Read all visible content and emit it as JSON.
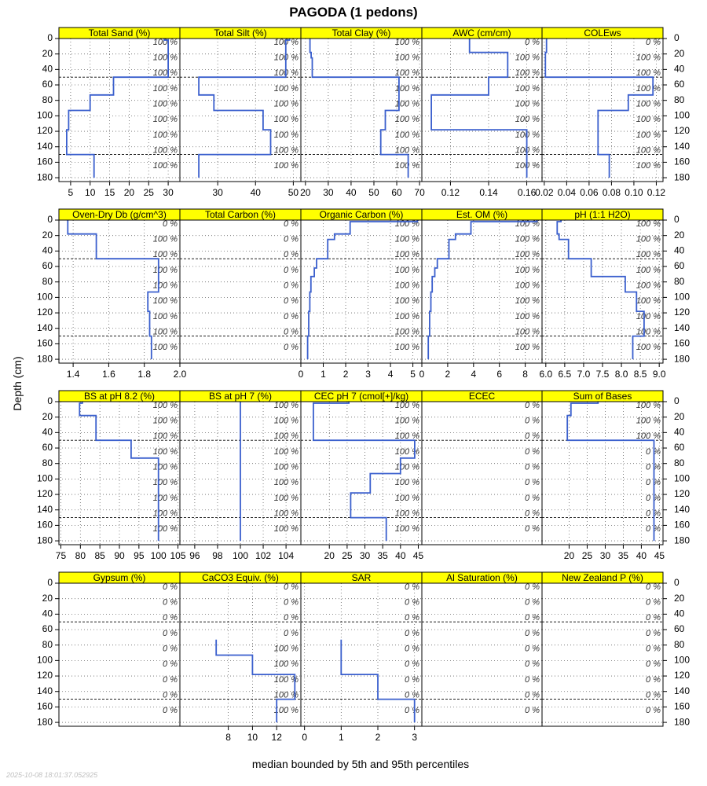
{
  "figure": {
    "title": "PAGODA (1 pedons)",
    "ylabel": "Depth (cm)",
    "xlabel": "median bounded by 5th and 95th percentiles",
    "timestamp": "2025-10-08 18:01:37.052925"
  },
  "colors": {
    "strip": "#ffff00",
    "line": "#3a5fcd",
    "text": "#000000",
    "grid": "#666666",
    "boundary": "#000000",
    "stamp": "#c0c0c0"
  },
  "chart_data": {
    "type": "line",
    "ylim": [
      0,
      185
    ],
    "y_reversed": true,
    "y_ticks": [
      0,
      20,
      40,
      60,
      80,
      100,
      120,
      140,
      160,
      180
    ],
    "horizon_boundary_depths": [
      50,
      150
    ],
    "grid": true,
    "panels": [
      {
        "name": "Total Sand (%)",
        "xlim": [
          2,
          33
        ],
        "xticks": [
          5,
          10,
          15,
          20,
          25,
          30
        ],
        "depths": [
          0,
          2,
          2,
          50,
          50,
          73,
          73,
          93,
          93,
          118,
          118,
          150,
          150,
          180
        ],
        "values": [
          29,
          29,
          30,
          30,
          16,
          16,
          10,
          10,
          4.5,
          4.5,
          4,
          4,
          11,
          11
        ],
        "pct_labels": [
          "100 %",
          "100 %",
          "100 %",
          "100 %",
          "100 %",
          "100 %",
          "100 %",
          "100 %",
          "100 %"
        ]
      },
      {
        "name": "Total Silt (%)",
        "xlim": [
          20,
          52
        ],
        "xticks": [
          30,
          40,
          50
        ],
        "depths": [
          0,
          2,
          2,
          50,
          50,
          73,
          73,
          93,
          93,
          118,
          118,
          150,
          150,
          180
        ],
        "values": [
          49,
          49,
          48,
          48,
          25,
          25,
          29,
          29,
          42,
          42,
          44,
          44,
          25,
          25
        ],
        "pct_labels": [
          "100 %",
          "100 %",
          "100 %",
          "100 %",
          "100 %",
          "100 %",
          "100 %",
          "100 %",
          "100 %"
        ]
      },
      {
        "name": "Total Clay (%)",
        "xlim": [
          18,
          71
        ],
        "xticks": [
          20,
          30,
          40,
          50,
          60,
          70
        ],
        "depths": [
          0,
          18,
          18,
          25,
          25,
          50,
          50,
          93,
          93,
          118,
          118,
          150,
          150,
          180
        ],
        "values": [
          22,
          22,
          22.5,
          22.5,
          23,
          23,
          61,
          61,
          55,
          55,
          53,
          53,
          65,
          65
        ],
        "pct_labels": [
          "100 %",
          "100 %",
          "100 %",
          "100 %",
          "100 %",
          "100 %",
          "100 %",
          "100 %",
          "100 %"
        ]
      },
      {
        "name": "AWC (cm/cm)",
        "xlim": [
          0.105,
          0.168
        ],
        "xticks": [
          0.12,
          0.14,
          0.16
        ],
        "tick_decimals": 2,
        "depths": [
          0,
          18,
          18,
          50,
          50,
          73,
          73,
          118,
          118,
          180
        ],
        "values": [
          0.13,
          0.13,
          0.15,
          0.15,
          0.14,
          0.14,
          0.11,
          0.11,
          0.16,
          0.16
        ],
        "pct_labels": [
          "0 %",
          "100 %",
          "100 %",
          "100 %",
          "100 %",
          "100 %",
          "100 %",
          "100 %",
          "100 %"
        ]
      },
      {
        "name": "COLEws",
        "xlim": [
          0.018,
          0.126
        ],
        "xticks": [
          0.02,
          0.04,
          0.06,
          0.08,
          0.1,
          0.12
        ],
        "tick_decimals": 2,
        "depths": [
          0,
          18,
          18,
          50,
          50,
          73,
          73,
          93,
          93,
          150,
          150,
          180
        ],
        "values": [
          0.022,
          0.022,
          0.021,
          0.021,
          0.117,
          0.117,
          0.095,
          0.095,
          0.068,
          0.068,
          0.078,
          0.078
        ],
        "pct_labels": [
          "0 %",
          "100 %",
          "100 %",
          "100 %",
          "100 %",
          "100 %",
          "100 %",
          "100 %",
          "100 %"
        ]
      },
      {
        "name": "Oven-Dry Db (g/cm^3)",
        "xlim": [
          1.32,
          2.0
        ],
        "xticks": [
          1.4,
          1.6,
          1.8,
          2.0
        ],
        "tick_decimals": 1,
        "depths": [
          0,
          18,
          18,
          50,
          50,
          93,
          93,
          118,
          118,
          150,
          150,
          180
        ],
        "values": [
          1.37,
          1.37,
          1.53,
          1.53,
          1.88,
          1.88,
          1.82,
          1.82,
          1.83,
          1.83,
          1.84,
          1.84
        ],
        "pct_labels": [
          "0 %",
          "100 %",
          "100 %",
          "100 %",
          "100 %",
          "100 %",
          "100 %",
          "100 %",
          "100 %"
        ]
      },
      {
        "name": "Total Carbon (%)",
        "xlim": [
          0,
          1
        ],
        "xticks": [],
        "depths": [],
        "values": [],
        "pct_labels": [
          "0 %",
          "0 %",
          "0 %",
          "0 %",
          "0 %",
          "0 %",
          "0 %",
          "0 %",
          "0 %"
        ]
      },
      {
        "name": "Organic Carbon (%)",
        "xlim": [
          0,
          5.4
        ],
        "xticks": [
          0,
          1,
          2,
          3,
          4,
          5
        ],
        "depths": [
          0,
          2,
          2,
          18,
          18,
          25,
          25,
          50,
          50,
          62,
          62,
          73,
          73,
          93,
          93,
          118,
          118,
          150,
          150,
          180
        ],
        "values": [
          5.2,
          5.2,
          2.2,
          2.2,
          1.5,
          1.5,
          1.2,
          1.2,
          0.7,
          0.7,
          0.6,
          0.6,
          0.45,
          0.45,
          0.4,
          0.4,
          0.35,
          0.35,
          0.3,
          0.3
        ],
        "pct_labels": [
          "100 %",
          "100 %",
          "100 %",
          "100 %",
          "100 %",
          "100 %",
          "100 %",
          "100 %",
          "100 %"
        ]
      },
      {
        "name": "Est. OM (%)",
        "xlim": [
          0,
          9.3
        ],
        "xticks": [
          0,
          2,
          4,
          6,
          8
        ],
        "depths": [
          0,
          2,
          2,
          18,
          18,
          25,
          25,
          50,
          50,
          62,
          62,
          73,
          73,
          93,
          93,
          118,
          118,
          150,
          150,
          180
        ],
        "values": [
          8.9,
          8.9,
          3.8,
          3.8,
          2.6,
          2.6,
          2.1,
          2.1,
          1.2,
          1.2,
          1.0,
          1.0,
          0.8,
          0.8,
          0.7,
          0.7,
          0.6,
          0.6,
          0.5,
          0.5
        ],
        "pct_labels": [
          "100 %",
          "100 %",
          "100 %",
          "100 %",
          "100 %",
          "100 %",
          "100 %",
          "100 %",
          "100 %"
        ]
      },
      {
        "name": "pH (1:1 H2O)",
        "xlim": [
          5.9,
          9.1
        ],
        "xticks": [
          6.0,
          6.5,
          7.0,
          7.5,
          8.0,
          8.5,
          9.0
        ],
        "tick_decimals": 1,
        "depths": [
          0,
          2,
          2,
          18,
          18,
          25,
          25,
          50,
          50,
          73,
          73,
          93,
          93,
          118,
          118,
          150,
          150,
          180
        ],
        "values": [
          6.4,
          6.4,
          6.3,
          6.3,
          6.35,
          6.35,
          6.6,
          6.6,
          7.2,
          7.2,
          8.1,
          8.1,
          8.4,
          8.4,
          8.6,
          8.6,
          8.3,
          8.3
        ],
        "pct_labels": [
          "100 %",
          "100 %",
          "100 %",
          "100 %",
          "100 %",
          "100 %",
          "100 %",
          "100 %",
          "100 %"
        ]
      },
      {
        "name": "BS at pH 8.2 (%)",
        "xlim": [
          74.5,
          105.5
        ],
        "xticks": [
          75,
          80,
          85,
          90,
          95,
          100,
          105
        ],
        "depths": [
          0,
          2,
          2,
          18,
          18,
          50,
          50,
          73,
          73,
          180
        ],
        "values": [
          80.5,
          80.5,
          79.8,
          79.8,
          84,
          84,
          93,
          93,
          100,
          100
        ],
        "pct_labels": [
          "100 %",
          "100 %",
          "100 %",
          "100 %",
          "100 %",
          "100 %",
          "100 %",
          "100 %",
          "100 %"
        ]
      },
      {
        "name": "BS at pH 7 (%)",
        "xlim": [
          94.7,
          105.3
        ],
        "xticks": [
          96,
          98,
          100,
          102,
          104
        ],
        "depths": [
          0,
          180
        ],
        "values": [
          100,
          100
        ],
        "pct_labels": [
          "100 %",
          "100 %",
          "100 %",
          "100 %",
          "100 %",
          "100 %",
          "100 %",
          "100 %",
          "100 %"
        ]
      },
      {
        "name": "CEC pH 7 (cmol[+]/kg)",
        "xlim": [
          12,
          46
        ],
        "xticks": [
          20,
          25,
          30,
          35,
          40,
          45
        ],
        "depths": [
          0,
          2,
          2,
          50,
          50,
          73,
          73,
          93,
          93,
          118,
          118,
          150,
          150,
          180
        ],
        "values": [
          25.5,
          25.5,
          15.5,
          15.5,
          44,
          44,
          40,
          40,
          31.5,
          31.5,
          26,
          26,
          36,
          36
        ],
        "pct_labels": [
          "100 %",
          "100 %",
          "100 %",
          "100 %",
          "100 %",
          "100 %",
          "100 %",
          "100 %",
          "100 %"
        ]
      },
      {
        "name": "ECEC",
        "xlim": [
          0,
          1
        ],
        "xticks": [],
        "depths": [],
        "values": [],
        "pct_labels": [
          "0 %",
          "0 %",
          "0 %",
          "0 %",
          "0 %",
          "0 %",
          "0 %",
          "0 %",
          "0 %"
        ]
      },
      {
        "name": "Sum of Bases",
        "xlim": [
          12.5,
          46
        ],
        "xticks": [
          20,
          25,
          30,
          35,
          40,
          45
        ],
        "depths": [
          0,
          2,
          2,
          18,
          18,
          50,
          50,
          180
        ],
        "values": [
          28,
          28,
          20.5,
          20.5,
          19.5,
          19.5,
          43.5,
          43.5
        ],
        "pct_labels": [
          "100 %",
          "100 %",
          "100 %",
          "0 %",
          "0 %",
          "0 %",
          "0 %",
          "0 %",
          "0 %"
        ]
      },
      {
        "name": "Gypsum (%)",
        "xlim": [
          0,
          1
        ],
        "xticks": [],
        "depths": [],
        "values": [],
        "pct_labels": [
          "0 %",
          "0 %",
          "0 %",
          "0 %",
          "0 %",
          "0 %",
          "0 %",
          "0 %",
          "0 %"
        ]
      },
      {
        "name": "CaCO3 Equiv. (%)",
        "xlim": [
          4,
          14
        ],
        "xticks": [
          8,
          10,
          12
        ],
        "depths": [
          73,
          93,
          93,
          118,
          118,
          150,
          150,
          180
        ],
        "values": [
          7,
          7,
          10,
          10,
          13.5,
          13.5,
          12,
          12
        ],
        "pct_labels": [
          "0 %",
          "0 %",
          "0 %",
          "0 %",
          "100 %",
          "100 %",
          "100 %",
          "100 %",
          "100 %"
        ]
      },
      {
        "name": "SAR",
        "xlim": [
          -0.1,
          3.2
        ],
        "xticks": [
          0,
          1,
          2,
          3
        ],
        "depths": [
          73,
          118,
          118,
          150,
          150,
          180
        ],
        "values": [
          1,
          1,
          2,
          2,
          3,
          3
        ],
        "pct_labels": [
          "0 %",
          "0 %",
          "0 %",
          "0 %",
          "0 %",
          "0 %",
          "0 %",
          "0 %",
          "0 %"
        ]
      },
      {
        "name": "Al Saturation (%)",
        "xlim": [
          0,
          1
        ],
        "xticks": [],
        "depths": [],
        "values": [],
        "pct_labels": [
          "0 %",
          "0 %",
          "0 %",
          "0 %",
          "0 %",
          "0 %",
          "0 %",
          "0 %",
          "0 %"
        ]
      },
      {
        "name": "New Zealand P (%)",
        "xlim": [
          0,
          1
        ],
        "xticks": [],
        "depths": [],
        "values": [],
        "pct_labels": [
          "0 %",
          "0 %",
          "0 %",
          "0 %",
          "0 %",
          "0 %",
          "0 %",
          "0 %",
          "0 %"
        ]
      }
    ]
  }
}
